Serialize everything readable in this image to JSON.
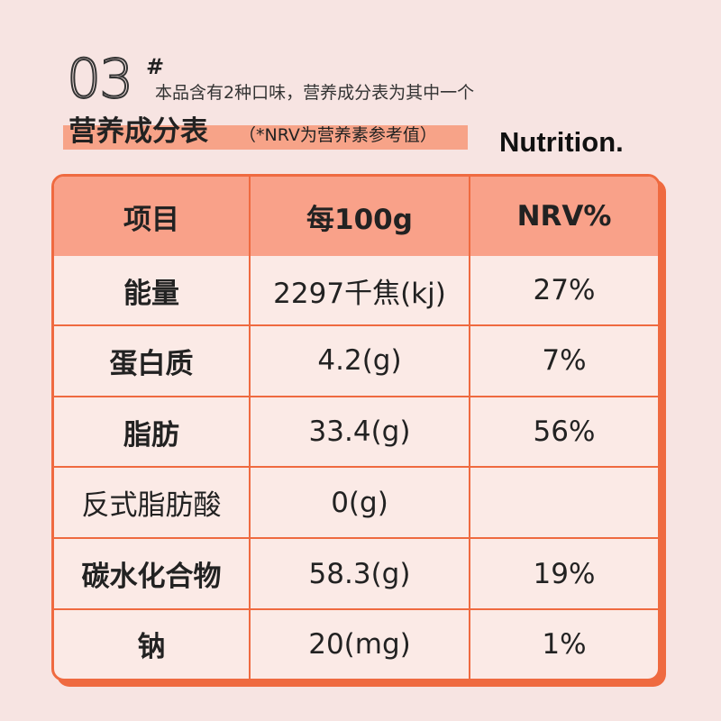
{
  "header": {
    "number": "03",
    "hash": "#",
    "note": "本品含有2种口味，营养成分表为其中一个",
    "title": "营养成分表",
    "subtitle": "（*NRV为营养素参考值）",
    "english": "Nutrition."
  },
  "table": {
    "columns": [
      "项目",
      "每100g",
      "NRV%"
    ],
    "rows": [
      {
        "item": "能量",
        "per100g": "2297千焦(kj)",
        "nrv": "27%",
        "bold": true
      },
      {
        "item": "蛋白质",
        "per100g": "4.2(g)",
        "nrv": "7%",
        "bold": true
      },
      {
        "item": "脂肪",
        "per100g": "33.4(g)",
        "nrv": "56%",
        "bold": true
      },
      {
        "item": "反式脂肪酸",
        "per100g": "0(g)",
        "nrv": "",
        "bold": false
      },
      {
        "item": "碳水化合物",
        "per100g": "58.3(g)",
        "nrv": "19%",
        "bold": true
      },
      {
        "item": "钠",
        "per100g": "20(mg)",
        "nrv": "1%",
        "bold": true
      }
    ]
  },
  "colors": {
    "background": "#f7e4e2",
    "accent": "#ef6a40",
    "header_fill": "#f9a189",
    "title_highlight": "#f7a388"
  }
}
